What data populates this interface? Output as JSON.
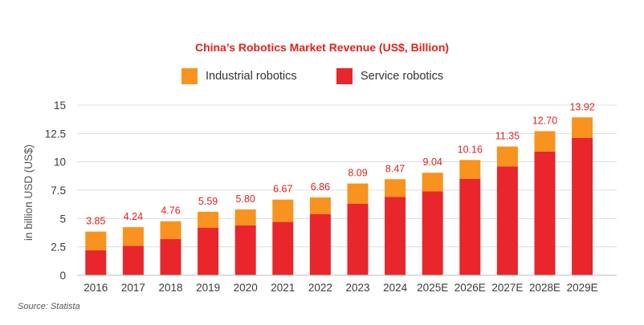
{
  "chart_data": {
    "type": "bar",
    "stacked": true,
    "title": "China’s Robotics Market Revenue (US$, Billion)",
    "ylabel": "in billion USD (US$)",
    "xlabel": "",
    "ylim": [
      0,
      15
    ],
    "yticks": [
      0,
      2.5,
      5,
      7.5,
      10,
      12.5,
      15
    ],
    "ytick_labels": [
      "0",
      "2.5",
      "5",
      "7.5",
      "10",
      "12.5",
      "15"
    ],
    "grid": true,
    "legend_position": "top",
    "categories": [
      "2016",
      "2017",
      "2018",
      "2019",
      "2020",
      "2021",
      "2022",
      "2023",
      "2024",
      "2025E",
      "2026E",
      "2027E",
      "2028E",
      "2029E"
    ],
    "series": [
      {
        "name": "Service robotics",
        "color": "#e8262b",
        "values": [
          2.2,
          2.6,
          3.2,
          4.2,
          4.4,
          4.7,
          5.4,
          6.3,
          6.9,
          7.4,
          8.5,
          9.6,
          10.9,
          12.1
        ]
      },
      {
        "name": "Industrial robotics",
        "color": "#f7931e",
        "values": [
          1.65,
          1.64,
          1.56,
          1.39,
          1.4,
          1.97,
          1.46,
          1.79,
          1.57,
          1.64,
          1.66,
          1.75,
          1.8,
          1.82
        ]
      }
    ],
    "totals": [
      "3.85",
      "4.24",
      "4.76",
      "5.59",
      "5.80",
      "6.67",
      "6.86",
      "8.09",
      "8.47",
      "9.04",
      "10.16",
      "11.35",
      "12.70",
      "13.92"
    ]
  },
  "legend": {
    "industrial_label": "Industrial robotics",
    "service_label": "Service robotics",
    "industrial_color": "#f7931e",
    "service_color": "#e8262b"
  },
  "source": "Source: Statista"
}
